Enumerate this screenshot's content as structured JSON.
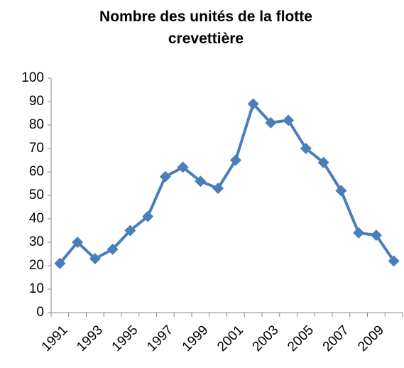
{
  "chart_data": {
    "type": "line",
    "title": "Nombre des unités de la flotte crevettière",
    "categories": [
      "1991",
      null,
      "1993",
      null,
      "1995",
      null,
      "1997",
      null,
      "1999",
      null,
      "2001",
      null,
      "2003",
      null,
      "2005",
      null,
      "2007",
      null,
      "2009",
      null
    ],
    "series": [
      {
        "color": "#4a7ebb",
        "values": [
          21,
          30,
          23,
          27,
          35,
          41,
          58,
          62,
          56,
          53,
          65,
          89,
          81,
          82,
          70,
          64,
          52,
          34,
          33,
          22
        ]
      }
    ],
    "ylim": [
      0,
      100
    ],
    "yticks": [
      0,
      10,
      20,
      30,
      40,
      50,
      60,
      70,
      80,
      90,
      100
    ],
    "grid": false
  }
}
